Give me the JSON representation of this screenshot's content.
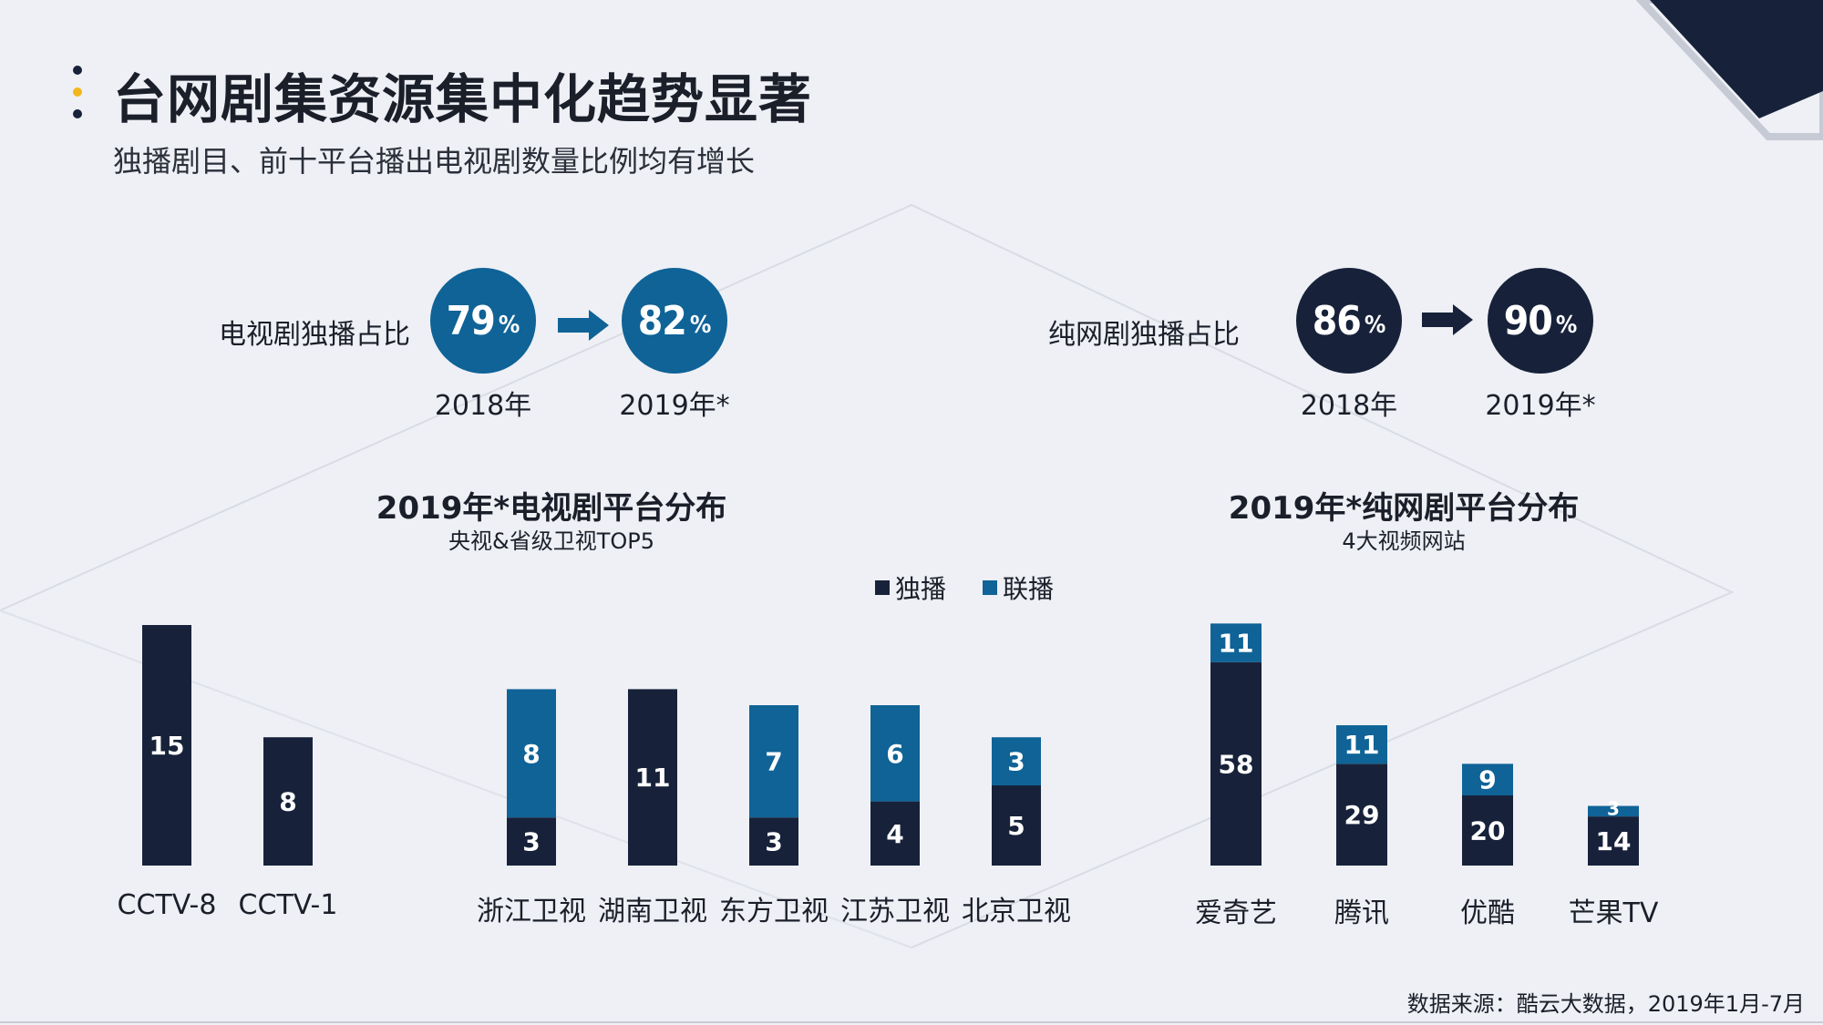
{
  "header": {
    "title": "台网剧集资源集中化趋势显著",
    "subtitle": "独播剧目、前十平台播出电视剧数量比例均有增长"
  },
  "kpis": {
    "tv": {
      "label": "电视剧独播占比",
      "from": {
        "value": "79",
        "unit": "%",
        "year": "2018年"
      },
      "to": {
        "value": "82",
        "unit": "%",
        "year": "2019年*"
      }
    },
    "web": {
      "label": "纯网剧独播占比",
      "from": {
        "value": "86",
        "unit": "%",
        "year": "2018年"
      },
      "to": {
        "value": "90",
        "unit": "%",
        "year": "2019年*"
      }
    }
  },
  "legend": {
    "exclusive": "独播",
    "syndicated": "联播"
  },
  "colors": {
    "exclusive": "#17223a",
    "syndicated": "#0f6397",
    "tv_circle": "#0f6397",
    "web_circle": "#17223a"
  },
  "source": "数据来源：酷云大数据，2019年1月-7月",
  "chart_data": [
    {
      "type": "bar",
      "stacked": true,
      "title": "2019年*电视剧平台分布",
      "subtitle": "央视&省级卫视TOP5",
      "categories": [
        "CCTV-8",
        "CCTV-1",
        "浙江卫视",
        "湖南卫视",
        "东方卫视",
        "江苏卫视",
        "北京卫视"
      ],
      "series": [
        {
          "name": "独播",
          "values": [
            15,
            8,
            3,
            11,
            3,
            4,
            5
          ]
        },
        {
          "name": "联播",
          "values": [
            0,
            0,
            8,
            0,
            7,
            6,
            3
          ]
        }
      ],
      "ylim": [
        0,
        15
      ]
    },
    {
      "type": "bar",
      "stacked": true,
      "title": "2019年*纯网剧平台分布",
      "subtitle": "4大视频网站",
      "categories": [
        "爱奇艺",
        "腾讯",
        "优酷",
        "芒果TV"
      ],
      "series": [
        {
          "name": "独播",
          "values": [
            58,
            29,
            20,
            14
          ]
        },
        {
          "name": "联播",
          "values": [
            11,
            11,
            9,
            3
          ]
        }
      ],
      "ylim": [
        0,
        69
      ]
    }
  ]
}
